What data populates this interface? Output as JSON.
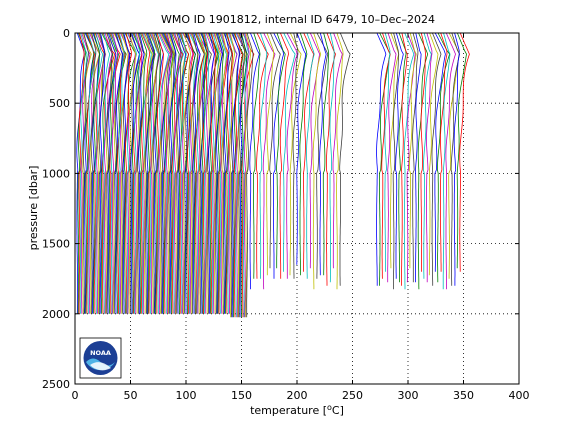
{
  "chart_data": {
    "type": "line",
    "title": "WMO ID 1901812, internal ID 6479, 10–Dec–2024",
    "xlabel_prefix": "temperature [",
    "xlabel_sup": "o",
    "xlabel_suffix": "C]",
    "ylabel": "pressure [dbar]",
    "xlim": [
      0,
      400
    ],
    "ylim": [
      0,
      2500
    ],
    "y_reversed": true,
    "x_ticks": [
      0,
      50,
      100,
      150,
      200,
      250,
      300,
      350,
      400
    ],
    "y_ticks": [
      0,
      500,
      1000,
      1500,
      2000,
      2500
    ],
    "x_tick_labels": [
      "0",
      "50",
      "100",
      "150",
      "200",
      "250",
      "300",
      "350",
      "400"
    ],
    "y_tick_labels": [
      "0",
      "500",
      "1000",
      "1500",
      "2000",
      "2500"
    ],
    "grid": true,
    "grid_style": "dotted",
    "legend": "none",
    "series_palette": [
      "#0000ff",
      "#008000",
      "#ff0000",
      "#00bfbf",
      "#bf00bf",
      "#bfbf00",
      "#404040"
    ],
    "profiles_note_visible": false,
    "profile_groups": [
      {
        "x_start": 2,
        "x_end": 155,
        "spacing": 1.0,
        "max_pressure": 2000,
        "max_pressure_tail": 2040,
        "tail_from_x": 140
      },
      {
        "x_start": 158,
        "x_end": 240,
        "spacing": 3.0,
        "max_pressure": 1850
      },
      {
        "x_start": 272,
        "x_end": 348,
        "spacing": 2.5,
        "max_pressure": 1860
      }
    ],
    "upper_band_extent_x": [
      2,
      352
    ],
    "upper_band_depth": 1000,
    "logo": "noaa-logo"
  },
  "logo_text": "NOAA"
}
